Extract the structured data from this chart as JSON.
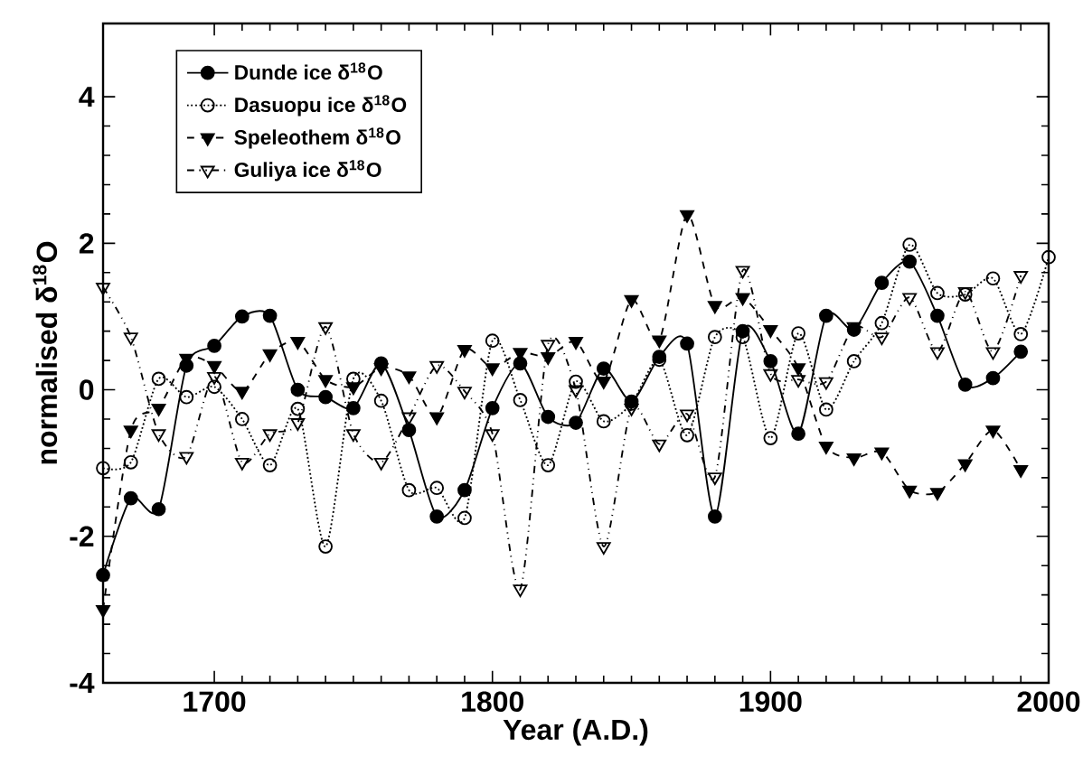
{
  "chart_data": {
    "type": "line",
    "xlabel": "Year (A.D.)",
    "ylabel": "normalised δ$^{18}$O",
    "xlim": [
      1660,
      2000
    ],
    "ylim": [
      -4,
      5
    ],
    "xticks": [
      1700,
      1800,
      1900,
      2000
    ],
    "yticks": [
      -4,
      -2,
      0,
      2,
      4
    ],
    "legend": "top left",
    "grid": false,
    "series": [
      {
        "name": "Dunde ice δ$^{18}$O",
        "color": "#000000",
        "marker": "circle",
        "line_style": "solid",
        "x": [
          1660,
          1670,
          1680,
          1690,
          1700,
          1710,
          1720,
          1730,
          1740,
          1750,
          1760,
          1770,
          1780,
          1790,
          1800,
          1810,
          1820,
          1830,
          1840,
          1850,
          1860,
          1870,
          1880,
          1890,
          1900,
          1910,
          1920,
          1930,
          1940,
          1950,
          1960,
          1970,
          1980,
          1990
        ],
        "values": [
          -2.53,
          -1.48,
          -1.63,
          0.33,
          0.6,
          1.0,
          1.01,
          0.0,
          -0.1,
          -0.25,
          0.36,
          -0.55,
          -1.73,
          -1.37,
          -0.25,
          0.36,
          -0.37,
          -0.45,
          0.29,
          -0.16,
          0.45,
          0.63,
          -1.73,
          0.8,
          0.39,
          -0.6,
          1.01,
          0.82,
          1.46,
          1.75,
          1.01,
          0.07,
          0.16,
          0.52
        ]
      },
      {
        "name": "Dasuopu ice δ$^{18}$O",
        "color": "#000000",
        "marker": "circle-open",
        "line_style": "dotted",
        "x": [
          1660,
          1670,
          1680,
          1690,
          1700,
          1710,
          1720,
          1730,
          1740,
          1750,
          1760,
          1770,
          1780,
          1790,
          1800,
          1810,
          1820,
          1830,
          1840,
          1850,
          1860,
          1870,
          1880,
          1890,
          1900,
          1910,
          1920,
          1930,
          1940,
          1950,
          1960,
          1970,
          1980,
          1990,
          2000
        ],
        "values": [
          -1.07,
          -0.99,
          0.15,
          -0.1,
          0.04,
          -0.4,
          -1.03,
          -0.26,
          -2.14,
          0.15,
          -0.15,
          -1.37,
          -1.34,
          -1.75,
          0.67,
          -0.14,
          -1.03,
          0.11,
          -0.43,
          -0.19,
          0.41,
          -0.62,
          0.72,
          0.72,
          -0.66,
          0.77,
          -0.27,
          0.39,
          0.91,
          1.98,
          1.32,
          1.3,
          1.52,
          0.76,
          1.81
        ]
      },
      {
        "name": "Speleothem δ$^{18}$O",
        "color": "#000000",
        "marker": "triangle-down",
        "line_style": "dashed",
        "x": [
          1660,
          1670,
          1680,
          1690,
          1700,
          1710,
          1720,
          1730,
          1740,
          1750,
          1760,
          1770,
          1780,
          1790,
          1800,
          1810,
          1820,
          1830,
          1840,
          1850,
          1860,
          1870,
          1880,
          1890,
          1900,
          1910,
          1920,
          1930,
          1940,
          1950,
          1960,
          1970,
          1980,
          1990
        ],
        "values": [
          -3.0,
          -0.55,
          -0.25,
          0.43,
          0.33,
          -0.02,
          0.49,
          0.66,
          0.14,
          0.04,
          0.3,
          0.19,
          -0.37,
          0.55,
          0.3,
          0.51,
          0.45,
          0.66,
          0.12,
          1.23,
          0.68,
          2.39,
          1.15,
          1.26,
          0.82,
          0.3,
          -0.77,
          -0.93,
          -0.85,
          -1.37,
          -1.4,
          -1.01,
          -0.55,
          -1.09
        ]
      },
      {
        "name": "Guliya ice δ$^{18}$O",
        "color": "#000000",
        "marker": "triangle-down-open",
        "line_style": "dashdotted",
        "x": [
          1660,
          1670,
          1680,
          1690,
          1700,
          1710,
          1720,
          1730,
          1740,
          1750,
          1760,
          1770,
          1780,
          1790,
          1800,
          1810,
          1820,
          1830,
          1840,
          1850,
          1860,
          1870,
          1880,
          1890,
          1900,
          1910,
          1920,
          1930,
          1940,
          1950,
          1960,
          1970,
          1980,
          1990
        ],
        "values": [
          1.4,
          0.72,
          -0.6,
          -0.91,
          0.18,
          -0.99,
          -0.6,
          -0.45,
          0.86,
          -0.6,
          -0.99,
          -0.37,
          0.33,
          -0.02,
          -0.6,
          -2.72,
          0.62,
          0.0,
          -2.14,
          -0.25,
          -0.74,
          -0.33,
          -1.19,
          1.63,
          0.22,
          0.14,
          0.11,
          0.86,
          0.72,
          1.26,
          0.52,
          1.34,
          0.52,
          1.56
        ]
      }
    ]
  }
}
